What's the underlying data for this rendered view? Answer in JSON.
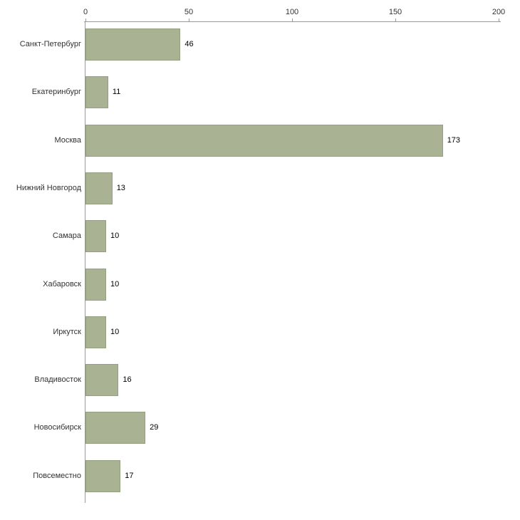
{
  "chart_data": {
    "type": "bar",
    "orientation": "horizontal",
    "title": "",
    "categories": [
      "Санкт-Петербург",
      "Екатеринбург",
      "Москва",
      "Нижний Новгород",
      "Самара",
      "Хабаровск",
      "Иркутск",
      "Владивосток",
      "Новосибирск",
      "Повсеместно"
    ],
    "values": [
      46,
      11,
      173,
      13,
      10,
      10,
      10,
      16,
      29,
      17
    ],
    "x_ticks": [
      0,
      50,
      100,
      150,
      200
    ],
    "xlim": [
      0,
      200
    ],
    "grid": false,
    "legend": false,
    "axis_position": "top",
    "colors": {
      "bar_fill": "#a9b293",
      "bar_border": "#93a07d",
      "axis_line": "#9a9a9a",
      "tick_label": "#333333",
      "category_label": "#333333",
      "value_label": "#000000",
      "background": "#ffffff"
    }
  }
}
